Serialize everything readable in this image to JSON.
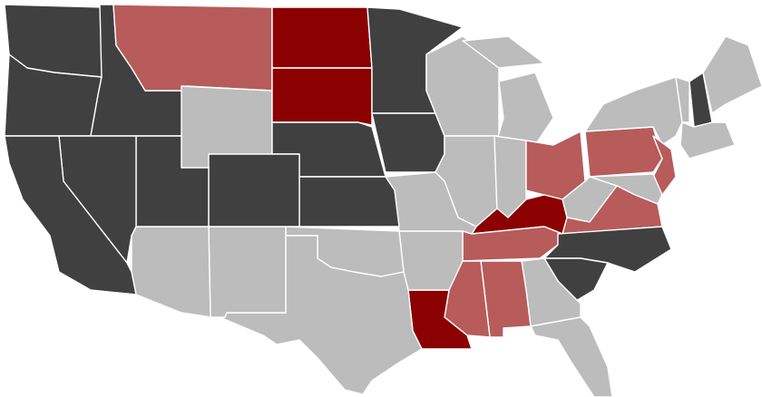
{
  "map": {
    "fills": [
      "#404040",
      "#bcbcbc",
      "#b75b5b",
      "#8b0000"
    ],
    "border": "#ffffff"
  }
}
